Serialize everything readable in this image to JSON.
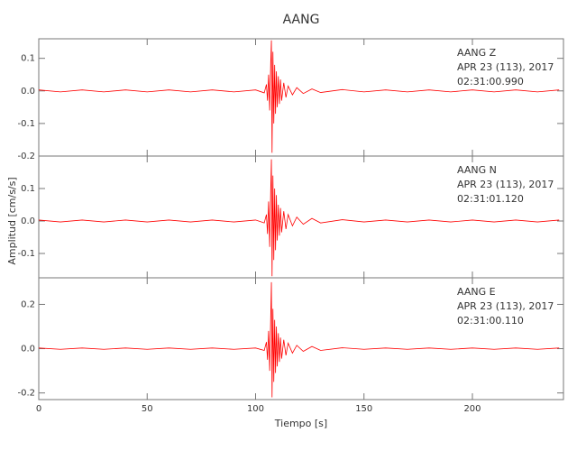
{
  "chart_data": [
    {
      "type": "line",
      "title": "AANG",
      "annotations": [
        "AANG  Z",
        "APR 23 (113), 2017",
        "02:31:00.990"
      ],
      "color": "#ff0000",
      "x": [
        0,
        10,
        20,
        30,
        40,
        50,
        60,
        70,
        80,
        90,
        100,
        104,
        105,
        105.5,
        106,
        106.5,
        107,
        107.3,
        107.6,
        108,
        108.4,
        108.8,
        109.2,
        109.6,
        110,
        110.5,
        111,
        111.5,
        112,
        113,
        114,
        115,
        117,
        119,
        122,
        126,
        130,
        140,
        150,
        160,
        170,
        180,
        190,
        200,
        210,
        220,
        230,
        240
      ],
      "values": [
        0.003,
        -0.003,
        0.003,
        -0.003,
        0.003,
        -0.003,
        0.003,
        -0.003,
        0.003,
        -0.003,
        0.003,
        -0.006,
        0.02,
        -0.03,
        0.05,
        -0.06,
        0.09,
        0.155,
        -0.19,
        0.12,
        -0.1,
        0.08,
        -0.07,
        0.06,
        -0.05,
        0.045,
        -0.04,
        0.035,
        -0.03,
        0.025,
        -0.02,
        0.015,
        -0.012,
        0.01,
        -0.008,
        0.006,
        -0.005,
        0.004,
        -0.003,
        0.003,
        -0.003,
        0.003,
        -0.003,
        0.003,
        -0.003,
        0.003,
        -0.003,
        0.003
      ],
      "xlim": [
        0,
        242
      ],
      "ylim": [
        -0.2,
        0.16
      ],
      "yticks": [
        0.1,
        {
          "value": 0,
          "label": "0.0"
        },
        -0.1,
        -0.2
      ]
    },
    {
      "type": "line",
      "ylabel": "Amplitud [cm/s/s]",
      "annotations": [
        "AANG  N",
        "APR 23 (113), 2017",
        "02:31:01.120"
      ],
      "color": "#ff0000",
      "x": [
        0,
        10,
        20,
        30,
        40,
        50,
        60,
        70,
        80,
        90,
        100,
        104,
        105,
        105.5,
        106,
        106.5,
        107,
        107.3,
        107.6,
        108,
        108.4,
        108.8,
        109.2,
        109.6,
        110,
        110.5,
        111,
        111.5,
        112,
        113,
        114,
        115,
        117,
        119,
        122,
        126,
        130,
        140,
        150,
        160,
        170,
        180,
        190,
        200,
        210,
        220,
        230,
        240
      ],
      "values": [
        0.003,
        -0.003,
        0.003,
        -0.003,
        0.003,
        -0.003,
        0.003,
        -0.003,
        0.003,
        -0.003,
        0.003,
        -0.006,
        0.02,
        -0.04,
        0.06,
        -0.08,
        0.1,
        0.19,
        -0.17,
        0.14,
        -0.12,
        0.1,
        -0.09,
        0.08,
        -0.06,
        0.05,
        -0.045,
        0.04,
        -0.035,
        0.03,
        -0.025,
        0.02,
        -0.015,
        0.012,
        -0.01,
        0.008,
        -0.006,
        0.004,
        -0.003,
        0.003,
        -0.003,
        0.003,
        -0.003,
        0.003,
        -0.003,
        0.003,
        -0.003,
        0.003
      ],
      "xlim": [
        0,
        242
      ],
      "ylim": [
        -0.175,
        0.2
      ],
      "yticks": [
        0.1,
        {
          "value": 0,
          "label": "0.0"
        },
        -0.1
      ]
    },
    {
      "type": "line",
      "xlabel": "Tiempo [s]",
      "annotations": [
        "AANG  E",
        "APR 23 (113), 2017",
        "02:31:00.110"
      ],
      "color": "#ff0000",
      "x": [
        0,
        10,
        20,
        30,
        40,
        50,
        60,
        70,
        80,
        90,
        100,
        104,
        105,
        105.5,
        106,
        106.5,
        107,
        107.3,
        107.6,
        108,
        108.4,
        108.8,
        109.2,
        109.6,
        110,
        110.5,
        111,
        111.5,
        112,
        113,
        114,
        115,
        117,
        119,
        122,
        126,
        130,
        140,
        150,
        160,
        170,
        180,
        190,
        200,
        210,
        220,
        230,
        240
      ],
      "values": [
        0.003,
        -0.003,
        0.003,
        -0.003,
        0.003,
        -0.003,
        0.003,
        -0.003,
        0.003,
        -0.003,
        0.003,
        -0.008,
        0.03,
        -0.05,
        0.08,
        -0.1,
        0.15,
        0.3,
        -0.22,
        0.18,
        -0.15,
        0.13,
        -0.11,
        0.1,
        -0.08,
        0.07,
        -0.06,
        0.05,
        -0.045,
        0.04,
        -0.03,
        0.025,
        -0.02,
        0.015,
        -0.012,
        0.01,
        -0.008,
        0.004,
        -0.003,
        0.003,
        -0.003,
        0.003,
        -0.003,
        0.003,
        -0.003,
        0.003,
        -0.003,
        0.003
      ],
      "xlim": [
        0,
        242
      ],
      "ylim": [
        -0.23,
        0.32
      ],
      "yticks": [
        0.2,
        {
          "value": 0,
          "label": "0.0"
        },
        -0.2
      ],
      "xticks": [
        0,
        50,
        100,
        150,
        200
      ]
    }
  ]
}
